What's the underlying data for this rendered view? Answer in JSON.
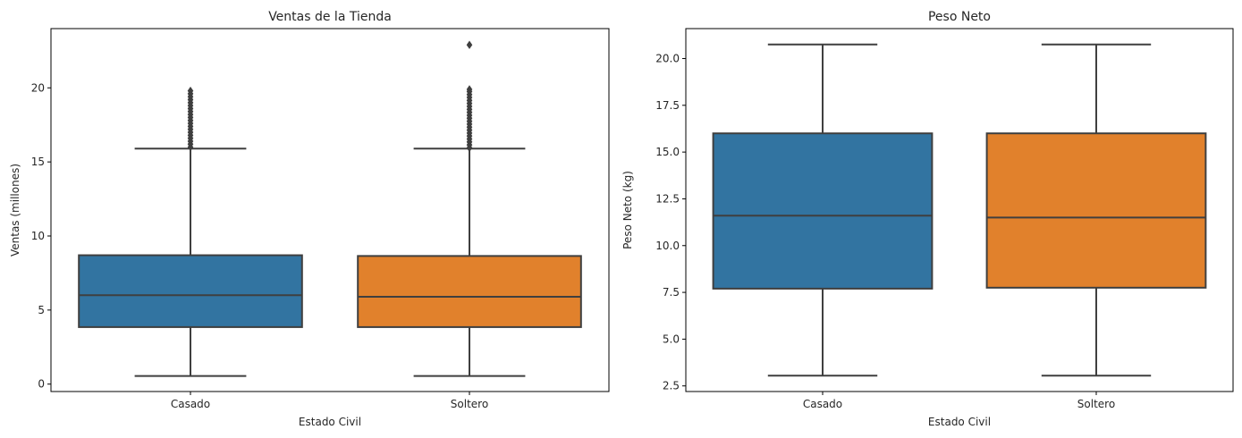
{
  "chart_data": [
    {
      "type": "box",
      "title": "Ventas de la Tienda",
      "xlabel": "Estado Civil",
      "ylabel": "Ventas (millones)",
      "ylim": [
        -0.5,
        24.0
      ],
      "yticks": [
        0,
        5,
        10,
        15,
        20
      ],
      "ytick_labels": [
        "0",
        "5",
        "10",
        "15",
        "20"
      ],
      "categories": [
        "Casado",
        "Soltero"
      ],
      "colors": [
        "#3274a1",
        "#e1812c"
      ],
      "series": [
        {
          "category": "Casado",
          "whisker_low": 0.55,
          "q1": 3.85,
          "median": 6.0,
          "q3": 8.7,
          "whisker_high": 15.9,
          "outliers": [
            16.0,
            16.2,
            16.4,
            16.6,
            16.8,
            17.0,
            17.2,
            17.4,
            17.6,
            17.8,
            18.0,
            18.2,
            18.4,
            18.6,
            18.8,
            19.0,
            19.2,
            19.4,
            19.6,
            19.8
          ]
        },
        {
          "category": "Soltero",
          "whisker_low": 0.55,
          "q1": 3.85,
          "median": 5.9,
          "q3": 8.65,
          "whisker_high": 15.9,
          "outliers": [
            15.95,
            16.15,
            16.35,
            16.55,
            16.75,
            16.95,
            17.15,
            17.35,
            17.55,
            17.75,
            17.95,
            18.15,
            18.35,
            18.55,
            18.75,
            18.95,
            19.15,
            19.35,
            19.55,
            19.75,
            19.9,
            22.9
          ]
        }
      ]
    },
    {
      "type": "box",
      "title": "Peso Neto",
      "xlabel": "Estado Civil",
      "ylabel": "Peso Neto (kg)",
      "ylim": [
        2.2,
        21.6
      ],
      "yticks": [
        2.5,
        5.0,
        7.5,
        10.0,
        12.5,
        15.0,
        17.5,
        20.0
      ],
      "ytick_labels": [
        "2.5",
        "5.0",
        "7.5",
        "10.0",
        "12.5",
        "15.0",
        "17.5",
        "20.0"
      ],
      "categories": [
        "Casado",
        "Soltero"
      ],
      "colors": [
        "#3274a1",
        "#e1812c"
      ],
      "series": [
        {
          "category": "Casado",
          "whisker_low": 3.05,
          "q1": 7.7,
          "median": 11.6,
          "q3": 16.0,
          "whisker_high": 20.75,
          "outliers": []
        },
        {
          "category": "Soltero",
          "whisker_low": 3.05,
          "q1": 7.75,
          "median": 11.5,
          "q3": 16.0,
          "whisker_high": 20.75,
          "outliers": []
        }
      ]
    }
  ]
}
